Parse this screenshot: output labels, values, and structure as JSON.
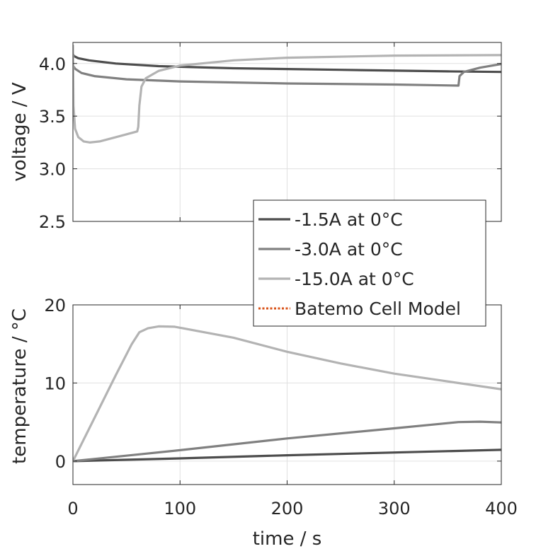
{
  "chart_data": [
    {
      "type": "line",
      "ylabel": "voltage / V",
      "xlabel": "",
      "xlim": [
        0,
        400
      ],
      "ylim": [
        2.5,
        4.2
      ],
      "xticks": [
        0,
        100,
        200,
        300,
        400
      ],
      "yticks": [
        2.5,
        3.0,
        3.5,
        4.0
      ],
      "ytick_labels": [
        "2.5",
        "3.0",
        "3.5",
        "4.0"
      ],
      "grid": true,
      "series": [
        {
          "name": "-1.5A at 0°C",
          "color": "#4d4d4d",
          "points": [
            [
              0,
              4.09
            ],
            [
              1,
              4.07
            ],
            [
              5,
              4.05
            ],
            [
              15,
              4.03
            ],
            [
              40,
              4.0
            ],
            [
              80,
              3.975
            ],
            [
              150,
              3.955
            ],
            [
              250,
              3.94
            ],
            [
              350,
              3.925
            ],
            [
              400,
              3.92
            ]
          ]
        },
        {
          "name": "-3.0A at 0°C",
          "color": "#808080",
          "points": [
            [
              0,
              3.98
            ],
            [
              2,
              3.95
            ],
            [
              8,
              3.91
            ],
            [
              20,
              3.88
            ],
            [
              50,
              3.85
            ],
            [
              100,
              3.83
            ],
            [
              200,
              3.81
            ],
            [
              300,
              3.8
            ],
            [
              360,
              3.79
            ],
            [
              361,
              3.88
            ],
            [
              365,
              3.92
            ],
            [
              380,
              3.96
            ],
            [
              400,
              3.995
            ]
          ]
        },
        {
          "name": "-15.0A at 0°C",
          "color": "#b3b3b3",
          "points": [
            [
              0,
              4.17
            ],
            [
              0.5,
              3.6
            ],
            [
              2,
              3.38
            ],
            [
              5,
              3.3
            ],
            [
              10,
              3.26
            ],
            [
              16,
              3.25
            ],
            [
              25,
              3.26
            ],
            [
              40,
              3.3
            ],
            [
              60,
              3.355
            ],
            [
              61,
              3.4
            ],
            [
              62,
              3.6
            ],
            [
              64,
              3.78
            ],
            [
              68,
              3.86
            ],
            [
              80,
              3.93
            ],
            [
              100,
              3.98
            ],
            [
              150,
              4.03
            ],
            [
              200,
              4.055
            ],
            [
              300,
              4.075
            ],
            [
              400,
              4.08
            ]
          ]
        }
      ]
    },
    {
      "type": "line",
      "ylabel": "temperature / °C",
      "xlabel": "time / s",
      "xlim": [
        0,
        400
      ],
      "ylim": [
        -3,
        20
      ],
      "xticks": [
        0,
        100,
        200,
        300,
        400
      ],
      "xtick_labels": [
        "0",
        "100",
        "200",
        "300",
        "400"
      ],
      "yticks": [
        0,
        10,
        20
      ],
      "ytick_labels": [
        "0",
        "10",
        "20"
      ],
      "grid": true,
      "series": [
        {
          "name": "-1.5A at 0°C",
          "color": "#4d4d4d",
          "points": [
            [
              0,
              0
            ],
            [
              100,
              0.35
            ],
            [
              200,
              0.75
            ],
            [
              300,
              1.1
            ],
            [
              400,
              1.45
            ]
          ]
        },
        {
          "name": "-3.0A at 0°C",
          "color": "#808080",
          "points": [
            [
              0,
              0
            ],
            [
              100,
              1.4
            ],
            [
              200,
              2.9
            ],
            [
              300,
              4.2
            ],
            [
              360,
              5.0
            ],
            [
              380,
              5.05
            ],
            [
              400,
              4.95
            ]
          ]
        },
        {
          "name": "-15.0A at 0°C",
          "color": "#b3b3b3",
          "points": [
            [
              0,
              0
            ],
            [
              20,
              5.5
            ],
            [
              40,
              11
            ],
            [
              55,
              15
            ],
            [
              62,
              16.5
            ],
            [
              70,
              17.0
            ],
            [
              80,
              17.25
            ],
            [
              95,
              17.2
            ],
            [
              150,
              15.8
            ],
            [
              200,
              14.0
            ],
            [
              250,
              12.5
            ],
            [
              300,
              11.2
            ],
            [
              350,
              10.2
            ],
            [
              400,
              9.2
            ]
          ]
        }
      ]
    }
  ],
  "legend": {
    "placement": "overlapping both panels, right",
    "entries": [
      {
        "label": "-1.5A at 0°C",
        "color": "#4d4d4d",
        "style": "solid"
      },
      {
        "label": "-3.0A at 0°C",
        "color": "#808080",
        "style": "solid"
      },
      {
        "label": "-15.0A at 0°C",
        "color": "#b3b3b3",
        "style": "solid"
      },
      {
        "label": "Batemo Cell Model",
        "color": "#d95319",
        "style": "dotted"
      }
    ]
  }
}
